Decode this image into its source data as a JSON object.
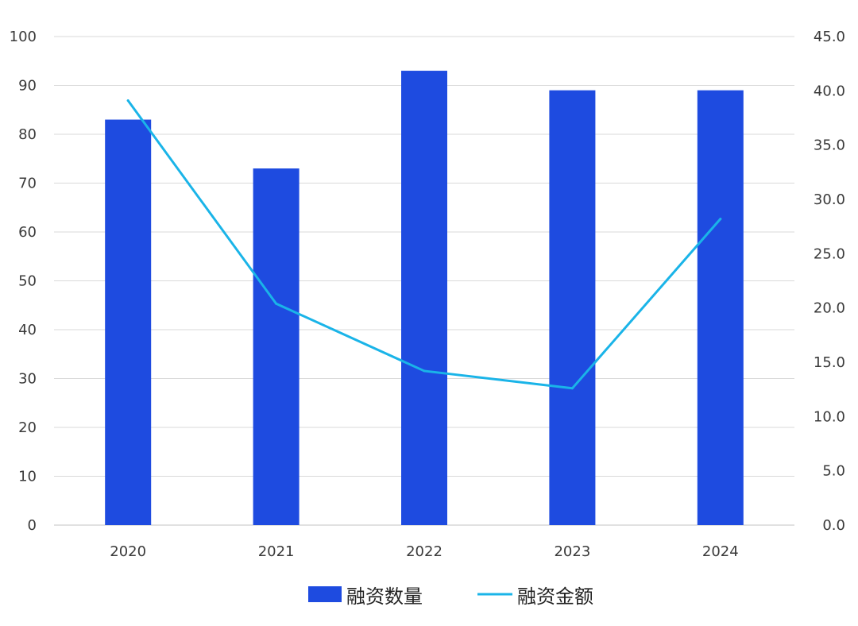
{
  "chart_data": {
    "type": "bar",
    "categories": [
      "2020",
      "2021",
      "2022",
      "2023",
      "2024"
    ],
    "series": [
      {
        "name": "融资数量",
        "type": "bar",
        "axis": "left",
        "values": [
          83,
          73,
          93,
          89,
          89
        ],
        "color": "#1e4be0"
      },
      {
        "name": "融资金额",
        "type": "line",
        "axis": "right",
        "values": [
          39.1,
          20.4,
          14.2,
          12.6,
          28.2
        ],
        "color": "#1ab4e8"
      }
    ],
    "y_left": {
      "ylim": [
        0,
        100
      ],
      "ticks": [
        "0",
        "10",
        "20",
        "30",
        "40",
        "50",
        "60",
        "70",
        "80",
        "90",
        "100"
      ]
    },
    "y_right": {
      "ylim": [
        0,
        45
      ],
      "ticks": [
        "0.0",
        "5.0",
        "10.0",
        "15.0",
        "20.0",
        "25.0",
        "30.0",
        "35.0",
        "40.0",
        "45.0"
      ]
    },
    "grid": true,
    "legend": "bottom-center"
  },
  "colors": {
    "grid": "#d9d9d9",
    "axis": "#cfcfcf"
  }
}
